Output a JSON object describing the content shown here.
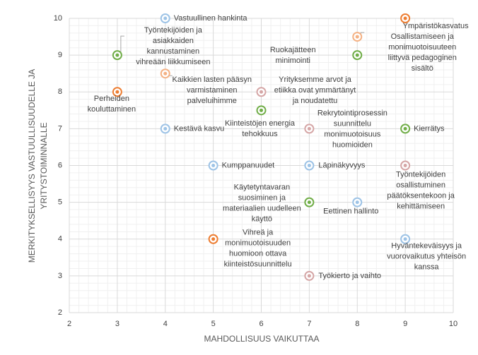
{
  "chart_data": {
    "type": "scatter",
    "x_label": "MAHDOLLISUUS VAIKUTTAA",
    "y_label_lines": [
      "MERKITYKSELLISYYS VASTUULLISUUDELLE JA",
      "YRITYSTOIMINNALLE"
    ],
    "xlim": [
      2,
      10
    ],
    "ylim": [
      2,
      10
    ],
    "xticks": [
      2,
      3,
      4,
      5,
      6,
      7,
      8,
      9,
      10
    ],
    "yticks": [
      2,
      3,
      4,
      5,
      6,
      7,
      8,
      9,
      10
    ],
    "grid": true,
    "minor_grid_divisions": 5,
    "points": [
      {
        "label_lines": [
          "Vastuullinen hankinta"
        ],
        "x": 4,
        "y": 10,
        "color": "#9dc3e6"
      },
      {
        "label_lines": [
          "Työntekijöiden ja",
          "asiakkaiden",
          "kannustaminen",
          "vihreään liikkumiseen"
        ],
        "x": 3,
        "y": 9,
        "color": "#70ad47"
      },
      {
        "label_lines": [
          "Perheiden",
          "kouluttaminen"
        ],
        "x": 3,
        "y": 8,
        "color": "#ed7d31"
      },
      {
        "label_lines": [
          "Kaikkien lasten pääsyn",
          "varmistaminen",
          "palveluihimme"
        ],
        "x": 4,
        "y": 8.5,
        "color": "#f4b183"
      },
      {
        "label_lines": [
          "Kestävä kasvu"
        ],
        "x": 4,
        "y": 7,
        "color": "#9dc3e6"
      },
      {
        "label_lines": [
          "Kumppanuudet"
        ],
        "x": 5,
        "y": 6,
        "color": "#9dc3e6"
      },
      {
        "label_lines": [
          "Vihreä ja",
          "monimuotoisuuden",
          "huomioon ottava",
          "kiinteistösuunnittelu"
        ],
        "x": 5,
        "y": 4,
        "color": "#ed7d31"
      },
      {
        "label_lines": [
          "Kiinteistöjen energia",
          "tehokkuus"
        ],
        "x": 6,
        "y": 7.5,
        "color": "#70ad47"
      },
      {
        "label_lines": [
          "Yrityksemme arvot ja",
          "etiikka ovat ymmärtänyt",
          "ja noudatettu"
        ],
        "x": 6,
        "y": 8,
        "color": "#d5a6a6"
      },
      {
        "label_lines": [
          "Rekrytointiprosessin",
          "suunnittelu",
          "monimuotoisuus",
          "huomioiden"
        ],
        "x": 7,
        "y": 7,
        "color": "#d5a6a6"
      },
      {
        "label_lines": [
          "Läpinäkyvyys"
        ],
        "x": 7,
        "y": 6,
        "color": "#9dc3e6"
      },
      {
        "label_lines": [
          "Käytetyntavaran",
          "suosiminen ja",
          "materiaalien uudelleen",
          "käyttö"
        ],
        "x": 7,
        "y": 5,
        "color": "#70ad47"
      },
      {
        "label_lines": [
          "Työkierto ja vaihto"
        ],
        "x": 7,
        "y": 3,
        "color": "#d5a6a6"
      },
      {
        "label_lines": [
          "Ruokajätteen",
          "minimointi"
        ],
        "x": 8,
        "y": 9,
        "color": "#70ad47"
      },
      {
        "label_lines": [
          "Osallistamiseen ja",
          "monimuotoisuuteen",
          "liittyvä pedagoginen",
          "sisältö"
        ],
        "x": 8,
        "y": 9.5,
        "color": "#f4b183"
      },
      {
        "label_lines": [
          "Eettinen hallinto"
        ],
        "x": 8,
        "y": 5,
        "color": "#9dc3e6"
      },
      {
        "label_lines": [
          "Ympäristökasvatus"
        ],
        "x": 9,
        "y": 10,
        "color": "#ed7d31"
      },
      {
        "label_lines": [
          "Kierrätys"
        ],
        "x": 9,
        "y": 7,
        "color": "#70ad47"
      },
      {
        "label_lines": [
          "Työntekijöiden",
          "osallistuminen",
          "päätöksentekoon ja",
          "kehittämiseen"
        ],
        "x": 9,
        "y": 6,
        "color": "#d5a6a6"
      },
      {
        "label_lines": [
          "Hyväntekeväisyys ja",
          "vuorovaikutus yhteisön",
          "kanssa"
        ],
        "x": 9,
        "y": 4,
        "color": "#9dc3e6"
      }
    ]
  }
}
